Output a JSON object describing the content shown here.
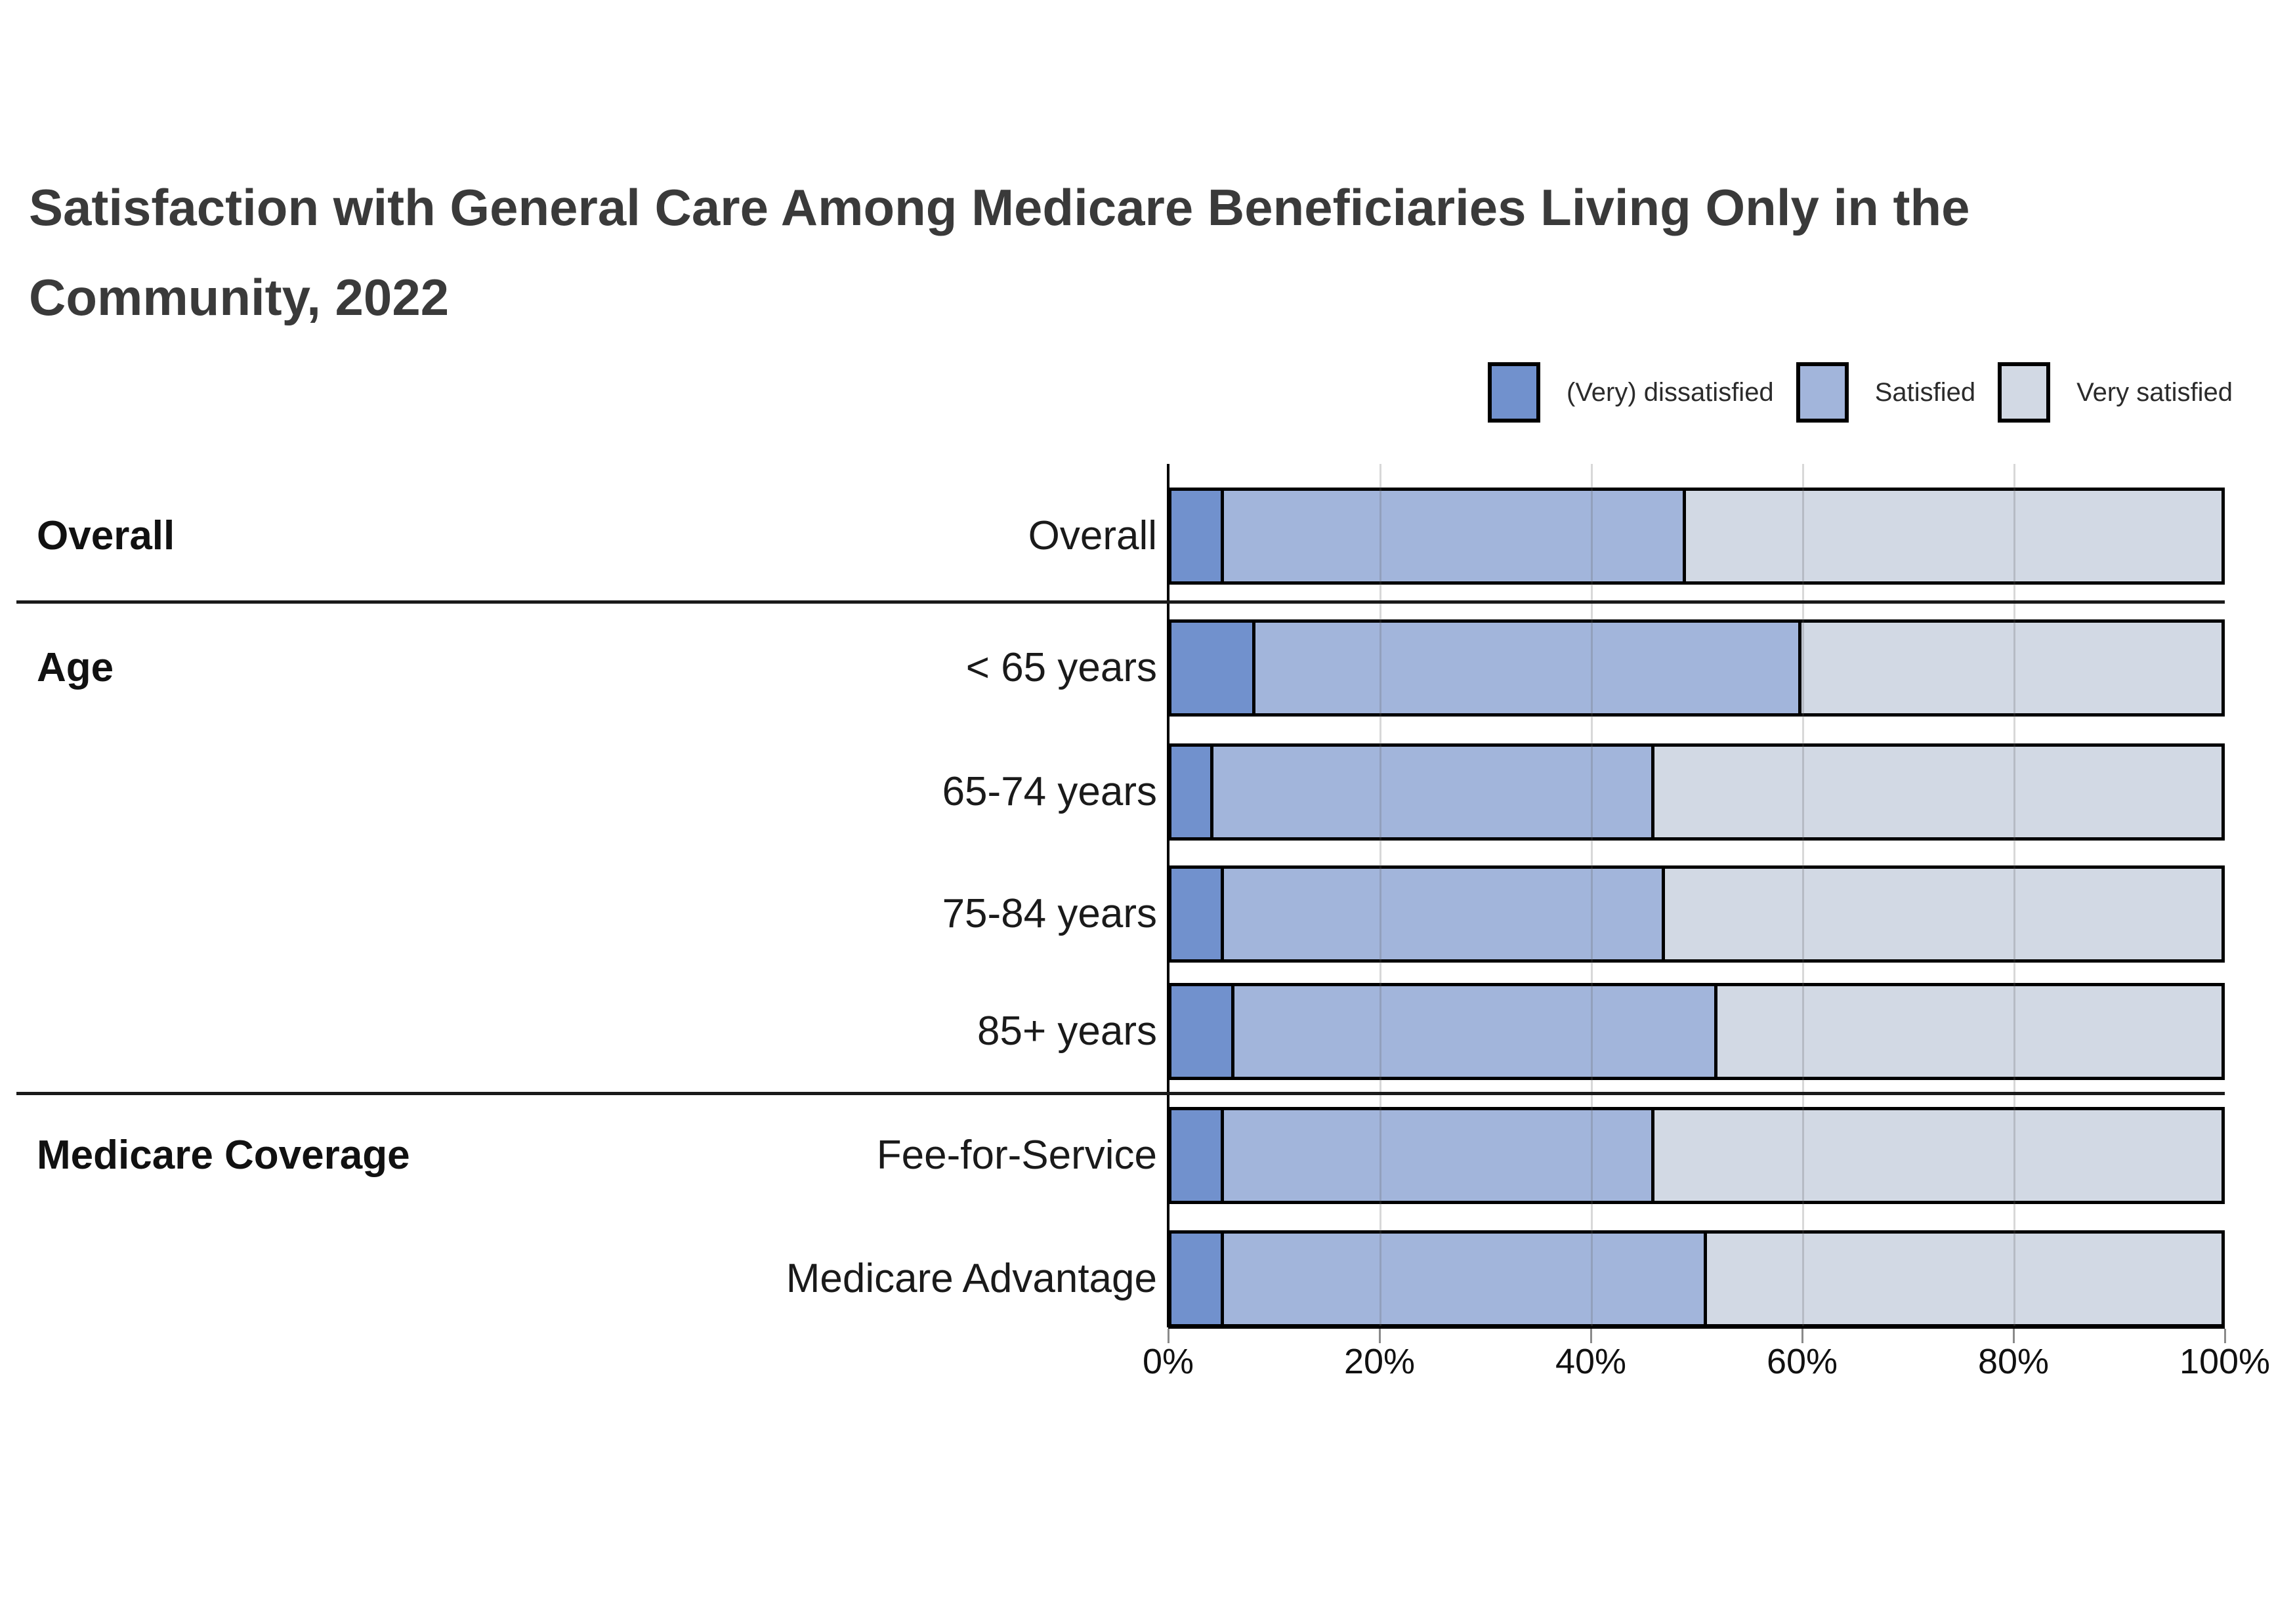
{
  "title": "Satisfaction with General Care Among Medicare Beneficiaries Living Only in the Community, 2022",
  "legend": {
    "items": [
      {
        "label": "(Very) dissatisfied",
        "color": "#7191CD"
      },
      {
        "label": "Satisfied",
        "color": "#A2B5DB"
      },
      {
        "label": "Very satisfied",
        "color": "#D2D9E4"
      }
    ]
  },
  "x_axis": {
    "tick_labels": [
      "0%",
      "20%",
      "40%",
      "60%",
      "80%",
      "100%"
    ],
    "min": 0,
    "max": 100
  },
  "chart_data": {
    "type": "bar",
    "orientation": "horizontal",
    "stacked": true,
    "units": "percent",
    "title": "Satisfaction with General Care Among Medicare Beneficiaries Living Only in the Community, 2022",
    "categories": [
      "Overall",
      "< 65 years",
      "65-74 years",
      "75-84 years",
      "85+ years",
      "Fee-for-Service",
      "Medicare Advantage"
    ],
    "series": [
      {
        "name": "(Very) dissatisfied",
        "color": "#7191CD",
        "values": [
          5,
          8,
          4,
          5,
          6,
          5,
          5
        ]
      },
      {
        "name": "Satisfied",
        "color": "#A2B5DB",
        "values": [
          44,
          52,
          42,
          42,
          46,
          41,
          46
        ]
      },
      {
        "name": "Very satisfied",
        "color": "#D2D9E4",
        "values": [
          51,
          40,
          54,
          53,
          48,
          54,
          49
        ]
      }
    ],
    "groups": [
      {
        "label": "Overall",
        "rows": [
          0
        ]
      },
      {
        "label": "Age",
        "rows": [
          1,
          2,
          3,
          4
        ]
      },
      {
        "label": "Medicare Coverage",
        "rows": [
          5,
          6
        ]
      }
    ],
    "xlim": [
      0,
      100
    ],
    "x_ticks": [
      "0%",
      "20%",
      "40%",
      "60%",
      "80%",
      "100%"
    ],
    "grid": "vertical gridlines every 20%",
    "legend_position": "top-right"
  },
  "colors": {
    "title_text": "#3A3A3A",
    "label_text": "#1A1A1A",
    "axis_text": "#111111",
    "bar_border": "#000000",
    "separator": "#1A1A1A",
    "gridline": "#C9C9C9"
  }
}
